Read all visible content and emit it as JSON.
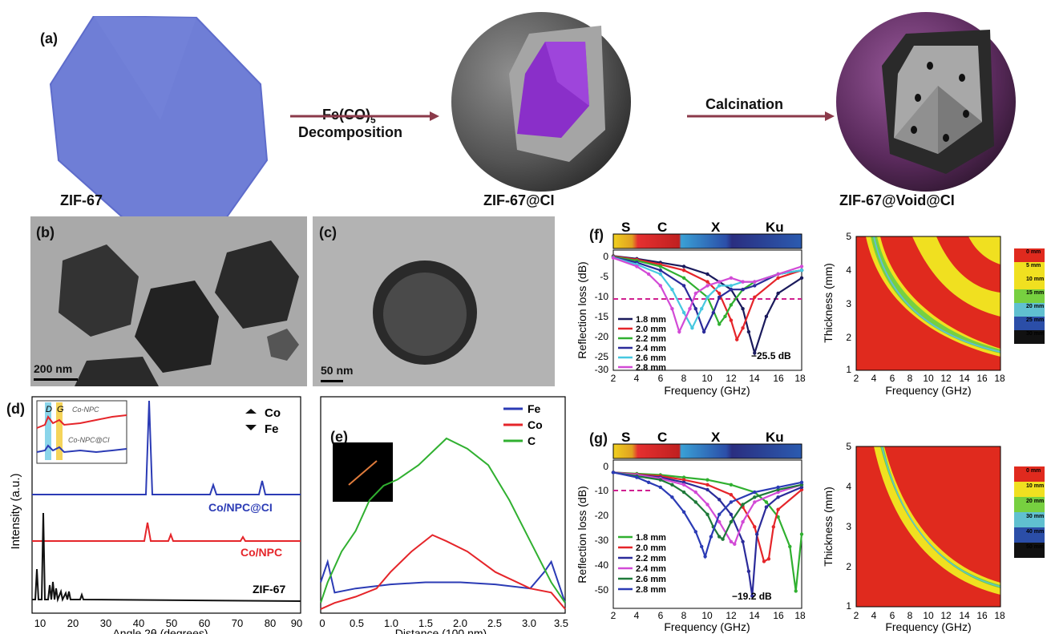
{
  "panel_a": {
    "label": "(a)",
    "stage1_label": "ZIF-67",
    "arrow1_top": "Fe(CO)",
    "arrow1_sub": "5",
    "arrow1_bottom": "Decomposition",
    "stage2_label": "ZIF-67@CI",
    "arrow2_top": "Calcination",
    "stage3_label": "ZIF-67@Void@CI"
  },
  "panel_b": {
    "label": "(b)",
    "scalebar": "200 nm"
  },
  "panel_c": {
    "label": "(c)",
    "scalebar": "50 nm"
  },
  "panel_d": {
    "label": "(d)",
    "ylabel": "Intensity (a.u.)",
    "xlabel": "Angle 2θ (degrees)",
    "xticks": [
      "10",
      "20",
      "30",
      "40",
      "50",
      "60",
      "70",
      "80",
      "90"
    ],
    "legend_co": "Co",
    "legend_fe": "Fe",
    "trace_labels": [
      "Co/NPC@CI",
      "Co/NPC",
      "ZIF-67"
    ],
    "inset_d": "D",
    "inset_g": "G",
    "inset_top_label": "Co-NPC",
    "inset_bottom_label": "Co-NPC@CI"
  },
  "panel_e": {
    "label": "(e)",
    "xlabel": "Distance (100 nm)",
    "xticks": [
      "0",
      "0.5",
      "1.0",
      "1.5",
      "2.0",
      "2.5",
      "3.0",
      "3.5"
    ],
    "legend": [
      "Fe",
      "Co",
      "C"
    ]
  },
  "panel_f": {
    "label": "(f)",
    "bands": [
      "S",
      "C",
      "X",
      "Ku"
    ],
    "ylabel": "Reflection loss (dB)",
    "xlabel": "Frequency (GHz)",
    "xticks": [
      "2",
      "4",
      "6",
      "8",
      "10",
      "12",
      "14",
      "16",
      "18"
    ],
    "yticks": [
      "0",
      "-5",
      "-10",
      "-15",
      "-20",
      "-25",
      "-30"
    ],
    "legend": [
      "1.8 mm",
      "2.0 mm",
      "2.2 mm",
      "2.4 mm",
      "2.6 mm",
      "2.8 mm"
    ],
    "annotation": "−25.5 dB",
    "contour_ylabel": "Thickness (mm)",
    "contour_xlabel": "Frequency (GHz)",
    "contour_yticks": [
      "1",
      "2",
      "3",
      "4",
      "5"
    ],
    "colorbar": [
      "0 mm",
      "5 mm",
      "10 mm",
      "15 mm",
      "20 mm",
      "25 mm",
      "30 mm"
    ]
  },
  "panel_g": {
    "label": "(g)",
    "bands": [
      "S",
      "C",
      "X",
      "Ku"
    ],
    "ylabel": "Reflection loss (dB)",
    "xlabel": "Frequency (GHz)",
    "xticks": [
      "2",
      "4",
      "6",
      "8",
      "10",
      "12",
      "14",
      "16",
      "18"
    ],
    "yticks": [
      "0",
      "-10",
      "-20",
      "-30",
      "-40",
      "-50"
    ],
    "legend": [
      "1.8 mm",
      "2.0 mm",
      "2.2 mm",
      "2.4 mm",
      "2.6 mm",
      "2.8 mm"
    ],
    "annotation": "−19.2 dB",
    "contour_ylabel": "Thickness (mm)",
    "contour_xlabel": "Frequency (GHz)",
    "contour_yticks": [
      "1",
      "2",
      "3",
      "4",
      "5"
    ],
    "colorbar": [
      "0 mm",
      "10 mm",
      "20 mm",
      "30 mm",
      "40 mm",
      "50 mm"
    ]
  },
  "colors": {
    "zif": "#6f7ed6",
    "core": "#8a2fc9",
    "shell": "#555555",
    "arrow": "#8b3a4a",
    "series": [
      "#1a1a5c",
      "#e5252a",
      "#30b030",
      "#2b2b9a",
      "#46c8e0",
      "#d24ad6"
    ]
  },
  "chart_data": [
    {
      "type": "line",
      "panel": "f",
      "xlabel": "Frequency (GHz)",
      "ylabel": "Reflection loss (dB)",
      "xlim": [
        2,
        18
      ],
      "ylim": [
        -30,
        0
      ],
      "series": [
        {
          "name": "1.8 mm",
          "x": [
            2,
            4,
            6,
            8,
            10,
            11,
            12,
            13,
            13.5,
            14,
            15,
            16,
            18
          ],
          "y": [
            -0.3,
            -1,
            -2,
            -3,
            -5,
            -7,
            -9,
            -14,
            -20,
            -25.5,
            -16,
            -10,
            -6
          ]
        },
        {
          "name": "2.0 mm",
          "x": [
            2,
            4,
            6,
            8,
            10,
            11,
            12,
            12.5,
            13,
            14,
            16,
            18
          ],
          "y": [
            -0.4,
            -1.2,
            -2.5,
            -4,
            -7,
            -10,
            -17,
            -22,
            -19,
            -11,
            -6,
            -4
          ]
        },
        {
          "name": "2.2 mm",
          "x": [
            2,
            4,
            6,
            8,
            10,
            11,
            11.5,
            12,
            13,
            14,
            16,
            18
          ],
          "y": [
            -0.5,
            -1.5,
            -3,
            -6,
            -11,
            -18,
            -16,
            -13,
            -9,
            -7,
            -5,
            -4
          ]
        },
        {
          "name": "2.4 mm",
          "x": [
            2,
            4,
            6,
            8,
            9,
            9.7,
            10.5,
            11,
            12,
            13,
            14,
            16,
            18
          ],
          "y": [
            -0.6,
            -2,
            -4,
            -8,
            -14,
            -20,
            -15,
            -11,
            -9,
            -9,
            -8,
            -5,
            -4
          ]
        },
        {
          "name": "2.6 mm",
          "x": [
            2,
            4,
            6,
            7,
            8,
            8.7,
            9.5,
            10,
            11,
            12,
            13,
            14,
            16,
            18
          ],
          "y": [
            -0.7,
            -2.5,
            -5,
            -9,
            -15,
            -19,
            -14,
            -11,
            -8,
            -8,
            -7,
            -7,
            -5,
            -4
          ]
        },
        {
          "name": "2.8 mm",
          "x": [
            2,
            4,
            5,
            6,
            7,
            7.6,
            8.5,
            9,
            10,
            11,
            12,
            13,
            14,
            16,
            18
          ],
          "y": [
            -0.8,
            -3,
            -5,
            -8,
            -14,
            -20,
            -14,
            -10,
            -8,
            -7,
            -6,
            -7,
            -7,
            -5,
            -3
          ]
        }
      ],
      "reference_line": -10
    },
    {
      "type": "line",
      "panel": "g",
      "xlabel": "Frequency (GHz)",
      "ylabel": "Reflection loss (dB)",
      "xlim": [
        2,
        18
      ],
      "ylim": [
        -55,
        5
      ],
      "series": [
        {
          "name": "1.8 mm",
          "x": [
            2,
            4,
            6,
            8,
            10,
            12,
            14,
            15,
            16,
            17,
            17.5,
            18
          ],
          "y": [
            0,
            -0.5,
            -1,
            -2,
            -3,
            -5,
            -8,
            -12,
            -18,
            -30,
            -48,
            -25
          ]
        },
        {
          "name": "2.0 mm",
          "x": [
            2,
            4,
            6,
            8,
            10,
            12,
            13,
            14,
            14.8,
            15.2,
            15.6,
            16,
            18
          ],
          "y": [
            0,
            -0.8,
            -1.5,
            -3,
            -5,
            -9,
            -14,
            -22,
            -36,
            -35,
            -22,
            -15,
            -7
          ]
        },
        {
          "name": "2.2 mm",
          "x": [
            2,
            4,
            6,
            8,
            10,
            11,
            12,
            13,
            13.5,
            13.8,
            14.2,
            15,
            16,
            18
          ],
          "y": [
            0,
            -1,
            -2,
            -4,
            -7,
            -11,
            -17,
            -28,
            -40,
            -50,
            -25,
            -14,
            -10,
            -6
          ]
        },
        {
          "name": "2.4 mm",
          "x": [
            2,
            4,
            6,
            8,
            9,
            10,
            11,
            12,
            12.3,
            13,
            14,
            16,
            18
          ],
          "y": [
            0,
            -1,
            -2.5,
            -5,
            -8,
            -13,
            -20,
            -28,
            -29,
            -20,
            -12,
            -8,
            -5
          ]
        },
        {
          "name": "2.6 mm",
          "x": [
            2,
            4,
            6,
            7,
            8,
            9,
            10,
            10.5,
            11,
            11.3,
            12,
            13,
            14,
            16,
            18
          ],
          "y": [
            0,
            -1.5,
            -3,
            -5,
            -8,
            -12,
            -17,
            -22,
            -26,
            -27,
            -20,
            -13,
            -10,
            -7,
            -5
          ]
        },
        {
          "name": "2.8 mm",
          "x": [
            2,
            4,
            5,
            6,
            7,
            8,
            9,
            9.5,
            9.8,
            10.3,
            11,
            12,
            14,
            16,
            18
          ],
          "y": [
            0,
            -2,
            -4,
            -6,
            -10,
            -16,
            -24,
            -30,
            -34,
            -26,
            -17,
            -12,
            -8,
            -6,
            -4
          ]
        }
      ],
      "reference_line": -10
    },
    {
      "type": "line",
      "panel": "e",
      "xlabel": "Distance (100 nm)",
      "xlim": [
        0,
        3.5
      ],
      "series": [
        {
          "name": "Fe",
          "x": [
            0,
            0.1,
            0.2,
            0.5,
            1.0,
            1.5,
            2.0,
            2.5,
            3.0,
            3.2,
            3.3,
            3.5
          ],
          "y": [
            0.15,
            0.25,
            0.1,
            0.12,
            0.14,
            0.15,
            0.15,
            0.14,
            0.12,
            0.2,
            0.25,
            0.05
          ]
        },
        {
          "name": "Co",
          "x": [
            0,
            0.2,
            0.5,
            0.8,
            1.0,
            1.3,
            1.6,
            1.8,
            2.1,
            2.5,
            3.0,
            3.3,
            3.5
          ],
          "y": [
            0.02,
            0.05,
            0.08,
            0.12,
            0.2,
            0.3,
            0.38,
            0.35,
            0.3,
            0.2,
            0.12,
            0.1,
            0.02
          ]
        },
        {
          "name": "C",
          "x": [
            0,
            0.1,
            0.3,
            0.5,
            0.7,
            0.9,
            1.1,
            1.4,
            1.8,
            2.1,
            2.4,
            2.7,
            3.0,
            3.3,
            3.5
          ],
          "y": [
            0.05,
            0.15,
            0.3,
            0.4,
            0.55,
            0.62,
            0.65,
            0.72,
            0.85,
            0.8,
            0.72,
            0.55,
            0.35,
            0.15,
            0.05
          ]
        }
      ]
    }
  ]
}
